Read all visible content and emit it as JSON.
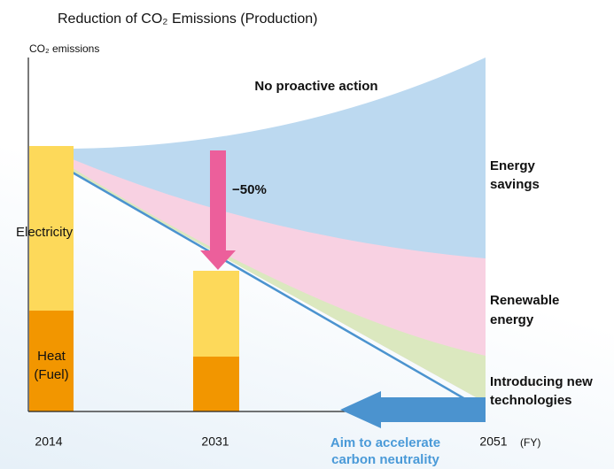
{
  "title": "Reduction of CO₂ Emissions (Production)",
  "y_axis_label": "CO₂ emissions",
  "scenario_label": "No proactive action",
  "reduction_label": "−50%",
  "layers": [
    {
      "lines": [
        "Energy",
        "savings"
      ]
    },
    {
      "lines": [
        "Renewable",
        "energy"
      ]
    },
    {
      "lines": [
        "Introducing new",
        "technologies"
      ]
    }
  ],
  "bar_parts": {
    "electricity": "Electricity",
    "heat": [
      "Heat",
      "(Fuel)"
    ]
  },
  "years": [
    "2014",
    "2031",
    "2051"
  ],
  "year_unit": "(FY)",
  "goal": [
    "Aim to accelerate",
    "carbon neutrality"
  ]
}
